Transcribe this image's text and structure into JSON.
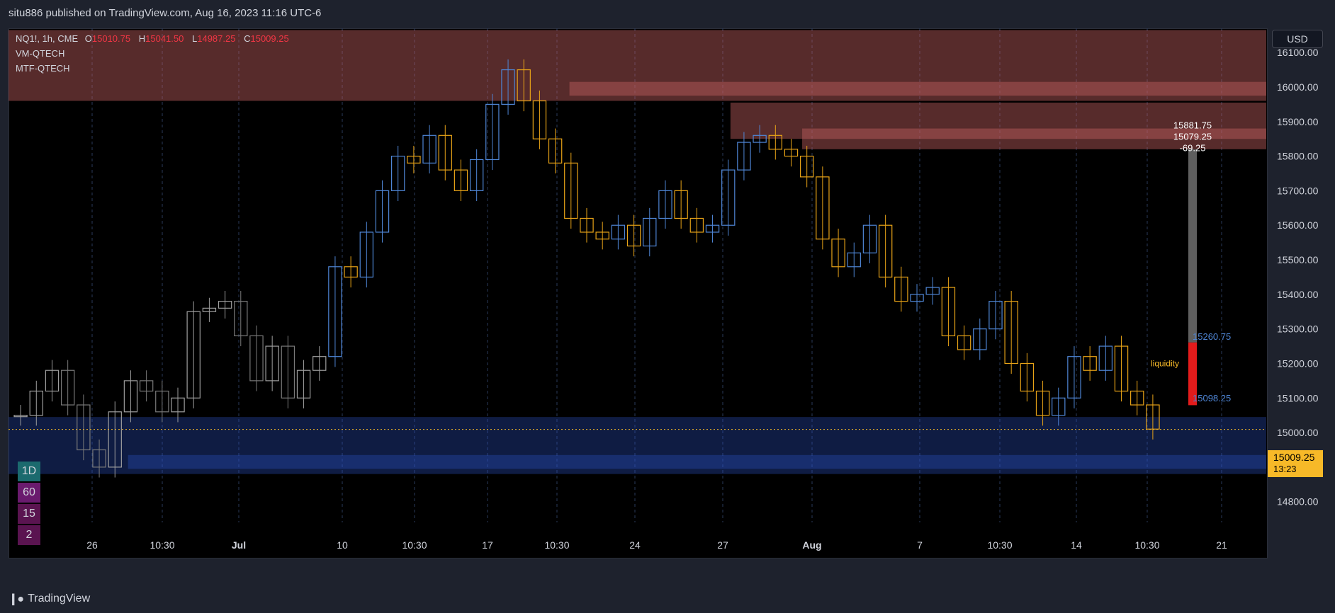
{
  "header": {
    "published": "situ886 published on TradingView.com, Aug 16, 2023 11:16 UTC-6"
  },
  "legend": {
    "symbol": "NQ1!, 1h, CME",
    "ohlc": [
      {
        "k": "O",
        "v": "15010.75"
      },
      {
        "k": "H",
        "v": "15041.50"
      },
      {
        "k": "L",
        "v": "14987.25"
      },
      {
        "k": "C",
        "v": "15009.25"
      }
    ],
    "indicators": [
      "VM-QTECH",
      "MTF-QTECH"
    ]
  },
  "currency_button": "USD",
  "timeframes": [
    {
      "label": "1D",
      "color": "#1b6a6e"
    },
    {
      "label": "60",
      "color": "#6a1b6e"
    },
    {
      "label": "15",
      "color": "#5a1450"
    },
    {
      "label": "2",
      "color": "#5a1450"
    }
  ],
  "last_price": {
    "price": "15009.25",
    "countdown": "13:23"
  },
  "footer": {
    "brand": "TradingView"
  },
  "chart_data": {
    "type": "candlestick",
    "symbol": "NQ1!",
    "interval": "1h",
    "ylim": [
      14740,
      16170
    ],
    "y_ticks": [
      16100,
      16000,
      15900,
      15800,
      15700,
      15600,
      15500,
      15400,
      15300,
      15200,
      15100,
      15000,
      14900,
      14800
    ],
    "y_tick_labels": [
      "16100.00",
      "16000.00",
      "15900.00",
      "15800.00",
      "15700.00",
      "15600.00",
      "15500.00",
      "15400.00",
      "15300.00",
      "15200.00",
      "15100.00",
      "15000.00",
      "14900.00",
      "14800.00"
    ],
    "x_ticks": [
      "26",
      "10:30",
      "Jul",
      "10",
      "10:30",
      "17",
      "10:30",
      "24",
      "27",
      "Aug",
      "7",
      "10:30",
      "14",
      "10:30",
      "21"
    ],
    "x_tick_bold": [
      "Jul",
      "Aug"
    ],
    "price_path": [
      15050,
      15120,
      15180,
      15080,
      14950,
      14900,
      15060,
      15150,
      15120,
      15060,
      15100,
      15350,
      15360,
      15380,
      15280,
      15150,
      15250,
      15100,
      15180,
      15220,
      15480,
      15450,
      15580,
      15700,
      15800,
      15780,
      15860,
      15760,
      15700,
      15790,
      15950,
      16050,
      15960,
      15850,
      15780,
      15620,
      15580,
      15560,
      15600,
      15540,
      15620,
      15700,
      15620,
      15580,
      15600,
      15760,
      15840,
      15860,
      15820,
      15800,
      15740,
      15560,
      15480,
      15520,
      15600,
      15450,
      15380,
      15400,
      15420,
      15280,
      15240,
      15300,
      15380,
      15200,
      15120,
      15050,
      15100,
      15220,
      15180,
      15250,
      15120,
      15080,
      15010
    ],
    "supply_zones": [
      {
        "from_x": 0,
        "to_x": 1,
        "y_low": 15960,
        "y_high": 16165
      },
      {
        "from_x": 0.446,
        "to_x": 1,
        "y_low": 15975,
        "y_high": 16015
      },
      {
        "from_x": 0.574,
        "to_x": 1,
        "y_low": 15850,
        "y_high": 15955
      },
      {
        "from_x": 0.631,
        "to_x": 1,
        "y_low": 15820,
        "y_high": 15880
      }
    ],
    "demand_zones": [
      {
        "from_x": 0,
        "to_x": 1,
        "y_low": 14880,
        "y_high": 15045
      },
      {
        "from_x": 0.095,
        "to_x": 1,
        "y_low": 14895,
        "y_high": 14935
      }
    ],
    "measure_tool": {
      "lines": [
        "15881.75",
        "15079.25",
        "-69.25"
      ],
      "top_label": "15260.75",
      "bottom_label": "15098.25"
    },
    "annotations": [
      {
        "text": "liquidity",
        "y": 15200
      }
    ]
  }
}
